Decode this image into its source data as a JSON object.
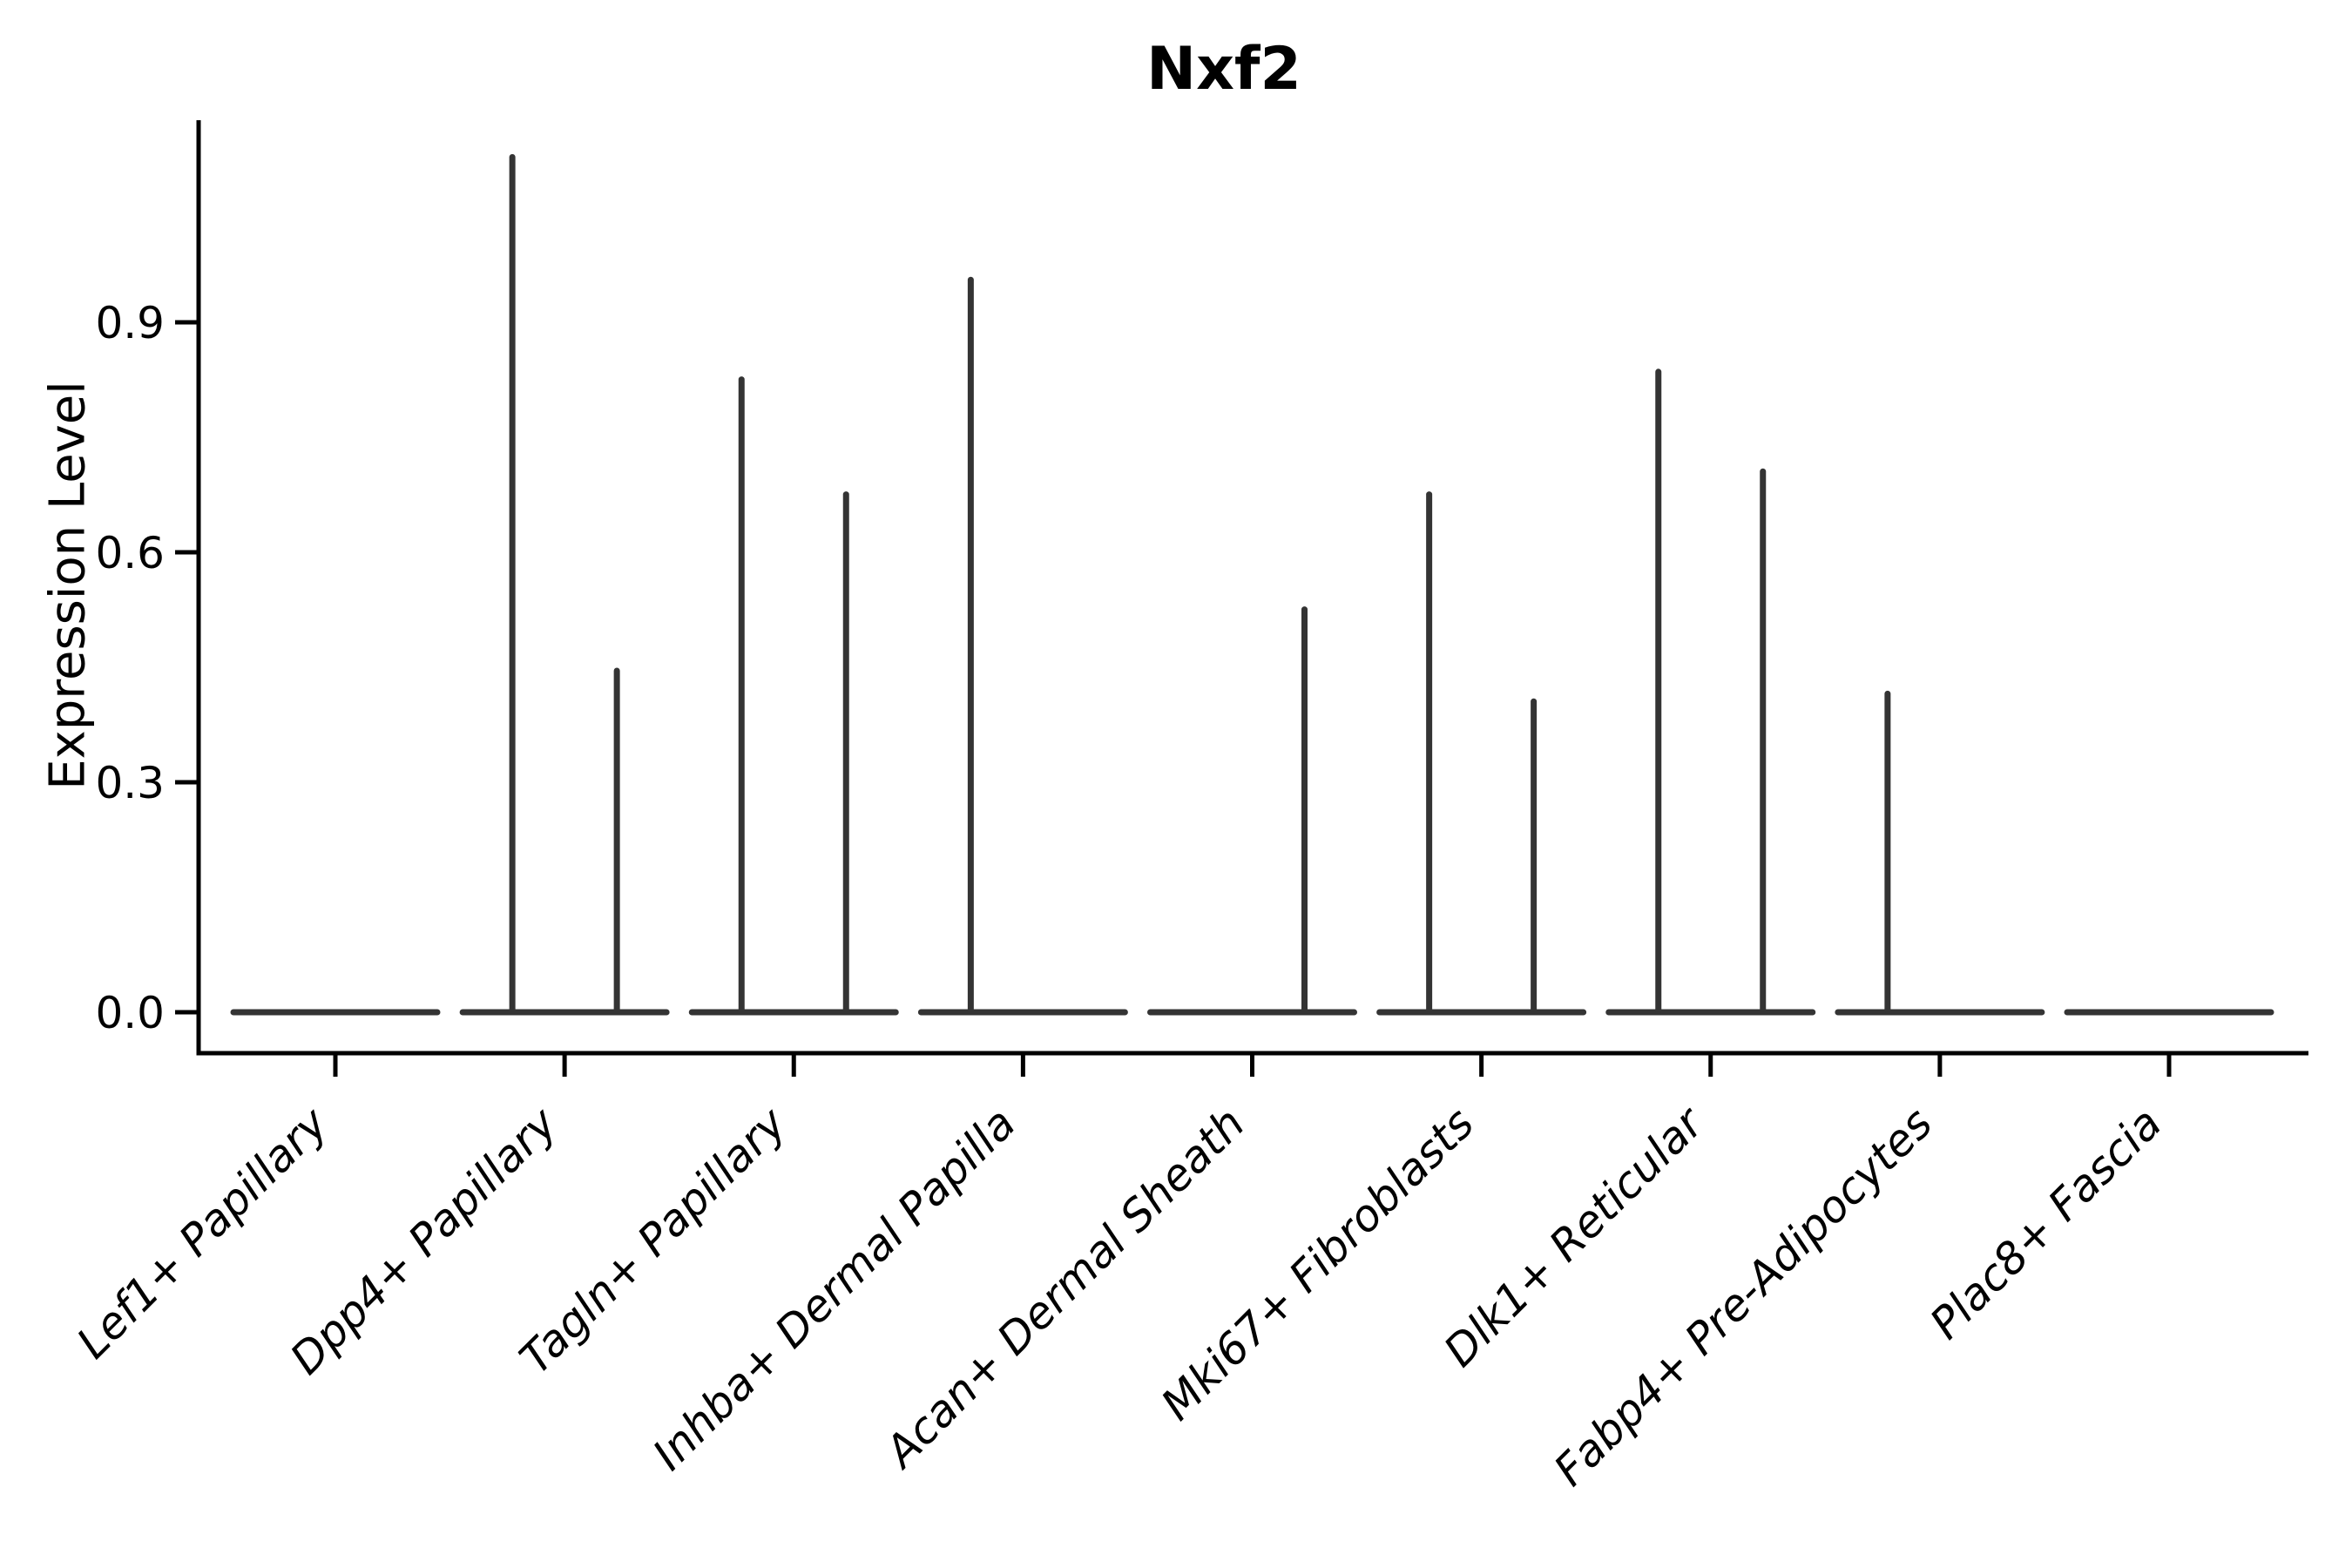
{
  "title": "Nxf2",
  "chart_data": {
    "type": "violin",
    "title": "Nxf2",
    "ylabel": "Expression Level",
    "xlabel": "",
    "ylim": [
      -0.053,
      1.164
    ],
    "yticks": [
      0.0,
      0.3,
      0.6,
      0.9
    ],
    "ytick_labels": [
      "0.0",
      "0.3",
      "0.6",
      "0.9"
    ],
    "grid": false,
    "legend": "none",
    "violins_per_category": 2,
    "categories": [
      "Lef1+ Papillary",
      "Dpp4+ Papillary",
      "Tagln+ Papillary",
      "Inhba+ Dermal Papilla",
      "Acan+ Dermal Sheath",
      "Mki67+ Fibroblasts",
      "Dlk1+ Reticular",
      "Fabp4+ Pre-Adipocytes",
      "Plac8+ Fascia"
    ],
    "series": [
      {
        "category": "Lef1+ Papillary",
        "spike_max": [
          0,
          0
        ],
        "baseline_value": 0
      },
      {
        "category": "Dpp4+ Papillary",
        "spike_max": [
          1.12,
          0.45
        ],
        "baseline_value": 0
      },
      {
        "category": "Tagln+ Papillary",
        "spike_max": [
          0.83,
          0.68
        ],
        "baseline_value": 0
      },
      {
        "category": "Inhba+ Dermal Papilla",
        "spike_max": [
          0.96,
          0
        ],
        "baseline_value": 0
      },
      {
        "category": "Acan+ Dermal Sheath",
        "spike_max": [
          0,
          0.53
        ],
        "baseline_value": 0
      },
      {
        "category": "Mki67+ Fibroblasts",
        "spike_max": [
          0.68,
          0.41
        ],
        "baseline_value": 0
      },
      {
        "category": "Dlk1+ Reticular",
        "spike_max": [
          0.84,
          0.71
        ],
        "baseline_value": 0
      },
      {
        "category": "Fabp4+ Pre-Adipocytes",
        "spike_max": [
          0.42,
          0
        ],
        "baseline_value": 0
      },
      {
        "category": "Plac8+ Fascia",
        "spike_max": [
          0,
          0
        ],
        "baseline_value": 0
      }
    ],
    "colors": {
      "violin": "#343434",
      "axis": "#000000",
      "text": "#000000",
      "background": "#ffffff"
    }
  }
}
